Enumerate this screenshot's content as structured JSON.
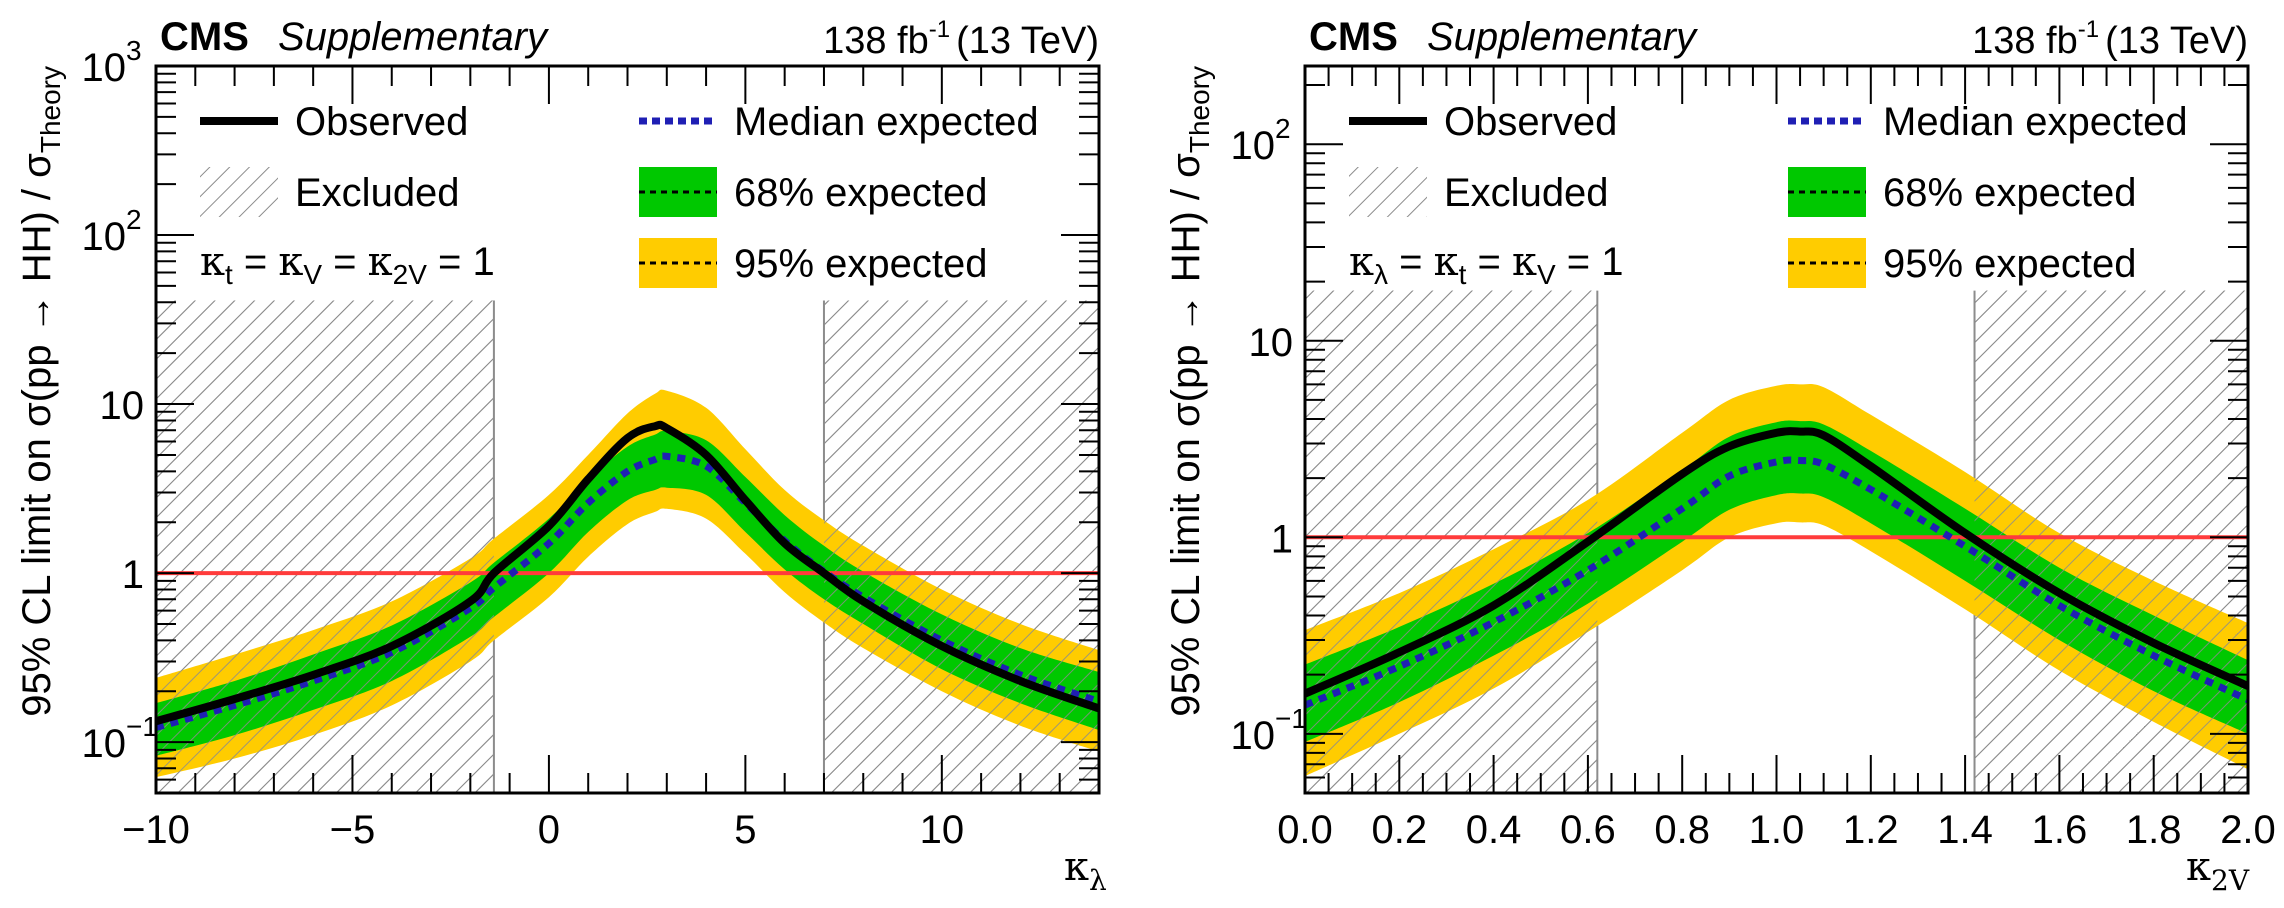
{
  "colors": {
    "observed": "#000000",
    "expected": "#1f1fb4",
    "band68": "#00c800",
    "band95": "#ffcc00",
    "reference_line": "#ff3b3b",
    "hatch": "#8c8c8c"
  },
  "chart_data": [
    {
      "type": "line",
      "title": "CMS Supplementary",
      "experiment_label": "CMS",
      "status_label": "Supplementary",
      "lumi_label": "138 fb",
      "lumi_sup": "-1",
      "energy_label": "(13 TeV)",
      "xlabel": "κ",
      "xlabel_sub": "λ",
      "ylabel": "95% CL limit on σ(pp → HH) / σ",
      "ylabel_sub": "Theory",
      "xlim": [
        -10,
        14
      ],
      "ylim": [
        0.05,
        1000
      ],
      "yscale": "log",
      "xticks": [
        -10,
        -5,
        0,
        5,
        10
      ],
      "xtick_labels": [
        "−10",
        "−5",
        "0",
        "5",
        "10"
      ],
      "xminor_step": 1,
      "yticks": [
        {
          "value": 0.1,
          "base": "10",
          "exp": "−1"
        },
        {
          "value": 1,
          "base": "1",
          "exp": ""
        },
        {
          "value": 10,
          "base": "10",
          "exp": ""
        },
        {
          "value": 100,
          "base": "10",
          "exp": "2"
        },
        {
          "value": 1000,
          "base": "10",
          "exp": "3"
        }
      ],
      "condition_label": {
        "parts": [
          {
            "k": "κ",
            "sub": "t"
          },
          {
            "k": "κ",
            "sub": "V"
          },
          {
            "k": "κ",
            "sub": "2V"
          }
        ],
        "value": "1"
      },
      "legend": {
        "position": "top",
        "entries": [
          {
            "label": "Observed",
            "style": "solid-line"
          },
          {
            "label": "Median expected",
            "style": "dotted-line"
          },
          {
            "label": "Excluded",
            "style": "hatch"
          },
          {
            "label": "68% expected",
            "style": "band68"
          },
          {
            "label": "95% expected",
            "style": "band95"
          }
        ]
      },
      "reference_line": 1,
      "excluded_regions": [
        {
          "x": [
            -10,
            -1.4
          ],
          "ymax": 41
        },
        {
          "x": [
            7.0,
            14
          ],
          "ymax": 41
        }
      ],
      "x": [
        -10,
        -8,
        -6,
        -4,
        -2,
        -1.4,
        0,
        1,
        2,
        2.7,
        3.0,
        4,
        5,
        6,
        7,
        8,
        10,
        12,
        14
      ],
      "series": [
        {
          "name": "Observed",
          "values": [
            0.133,
            0.18,
            0.25,
            0.37,
            0.68,
            1.0,
            1.9,
            3.6,
            6.3,
            7.4,
            7.2,
            5.0,
            2.7,
            1.5,
            1.0,
            0.68,
            0.37,
            0.23,
            0.158
          ]
        },
        {
          "name": "Median expected",
          "values": [
            0.122,
            0.165,
            0.23,
            0.34,
            0.62,
            0.82,
            1.5,
            2.6,
            4.0,
            4.7,
            4.9,
            4.3,
            2.6,
            1.55,
            1.02,
            0.72,
            0.4,
            0.25,
            0.174
          ]
        },
        {
          "name": "68% expected low",
          "values": [
            0.083,
            0.11,
            0.155,
            0.23,
            0.42,
            0.55,
            1.0,
            1.75,
            2.7,
            3.1,
            3.2,
            2.9,
            1.75,
            1.05,
            0.7,
            0.5,
            0.27,
            0.17,
            0.118
          ]
        },
        {
          "name": "68% expected high",
          "values": [
            0.17,
            0.23,
            0.33,
            0.49,
            0.88,
            1.15,
            2.1,
            3.6,
            5.6,
            6.6,
            6.9,
            6.1,
            3.7,
            2.2,
            1.45,
            1.02,
            0.57,
            0.36,
            0.26
          ]
        },
        {
          "name": "95% expected low",
          "values": [
            0.062,
            0.08,
            0.11,
            0.165,
            0.3,
            0.4,
            0.72,
            1.25,
            1.95,
            2.3,
            2.4,
            2.1,
            1.3,
            0.77,
            0.51,
            0.36,
            0.2,
            0.125,
            0.088
          ]
        },
        {
          "name": "95% expected high",
          "values": [
            0.24,
            0.33,
            0.46,
            0.68,
            1.22,
            1.6,
            2.9,
            5.0,
            8.8,
            11.5,
            12.0,
            9.5,
            5.4,
            3.1,
            2.05,
            1.45,
            0.8,
            0.5,
            0.35
          ]
        }
      ]
    },
    {
      "type": "line",
      "title": "CMS Supplementary",
      "experiment_label": "CMS",
      "status_label": "Supplementary",
      "lumi_label": "138 fb",
      "lumi_sup": "-1",
      "energy_label": "(13 TeV)",
      "xlabel": "κ",
      "xlabel_sub": "2V",
      "ylabel": "95% CL limit on σ(pp → HH) / σ",
      "ylabel_sub": "Theory",
      "xlim": [
        0,
        2
      ],
      "ylim": [
        0.05,
        250
      ],
      "yscale": "log",
      "xticks": [
        0,
        0.2,
        0.4,
        0.6,
        0.8,
        1.0,
        1.2,
        1.4,
        1.6,
        1.8,
        2.0
      ],
      "xtick_labels": [
        "0.0",
        "0.2",
        "0.4",
        "0.6",
        "0.8",
        "1.0",
        "1.2",
        "1.4",
        "1.6",
        "1.8",
        "2.0"
      ],
      "xminor_step": 0.05,
      "yticks": [
        {
          "value": 0.1,
          "base": "10",
          "exp": "−1"
        },
        {
          "value": 1,
          "base": "1",
          "exp": ""
        },
        {
          "value": 10,
          "base": "10",
          "exp": ""
        },
        {
          "value": 100,
          "base": "10",
          "exp": "2"
        }
      ],
      "condition_label": {
        "parts": [
          {
            "k": "κ",
            "sub": "λ"
          },
          {
            "k": "κ",
            "sub": "t"
          },
          {
            "k": "κ",
            "sub": "V"
          }
        ],
        "value": "1"
      },
      "legend": {
        "position": "top",
        "entries": [
          {
            "label": "Observed",
            "style": "solid-line"
          },
          {
            "label": "Median expected",
            "style": "dotted-line"
          },
          {
            "label": "Excluded",
            "style": "hatch"
          },
          {
            "label": "68% expected",
            "style": "band68"
          },
          {
            "label": "95% expected",
            "style": "band95"
          }
        ]
      },
      "reference_line": 1,
      "excluded_regions": [
        {
          "x": [
            0,
            0.62
          ],
          "ymax": 18
        },
        {
          "x": [
            1.42,
            2.0
          ],
          "ymax": 18
        }
      ],
      "x": [
        0,
        0.2,
        0.4,
        0.6,
        0.8,
        0.9,
        1.0,
        1.05,
        1.1,
        1.2,
        1.4,
        1.6,
        1.8,
        2.0
      ],
      "series": [
        {
          "name": "Observed",
          "values": [
            0.16,
            0.26,
            0.45,
            0.95,
            2.1,
            2.9,
            3.4,
            3.45,
            3.3,
            2.3,
            1.05,
            0.52,
            0.29,
            0.175
          ]
        },
        {
          "name": "Median expected",
          "values": [
            0.14,
            0.22,
            0.37,
            0.68,
            1.4,
            2.05,
            2.42,
            2.46,
            2.35,
            1.75,
            0.9,
            0.45,
            0.25,
            0.149
          ]
        },
        {
          "name": "68% expected low",
          "values": [
            0.091,
            0.145,
            0.25,
            0.46,
            0.95,
            1.38,
            1.64,
            1.67,
            1.6,
            1.18,
            0.6,
            0.3,
            0.165,
            0.1
          ]
        },
        {
          "name": "68% expected high",
          "values": [
            0.225,
            0.35,
            0.58,
            1.05,
            2.2,
            3.25,
            3.85,
            3.9,
            3.75,
            2.75,
            1.4,
            0.7,
            0.4,
            0.237
          ]
        },
        {
          "name": "95% expected low",
          "values": [
            0.061,
            0.1,
            0.17,
            0.33,
            0.68,
            1.0,
            1.18,
            1.19,
            1.15,
            0.85,
            0.43,
            0.21,
            0.115,
            0.066
          ]
        },
        {
          "name": "95% expected high",
          "values": [
            0.337,
            0.52,
            0.87,
            1.55,
            3.4,
            5.0,
            5.9,
            6.0,
            5.8,
            4.2,
            2.15,
            1.05,
            0.6,
            0.366
          ]
        }
      ]
    }
  ]
}
